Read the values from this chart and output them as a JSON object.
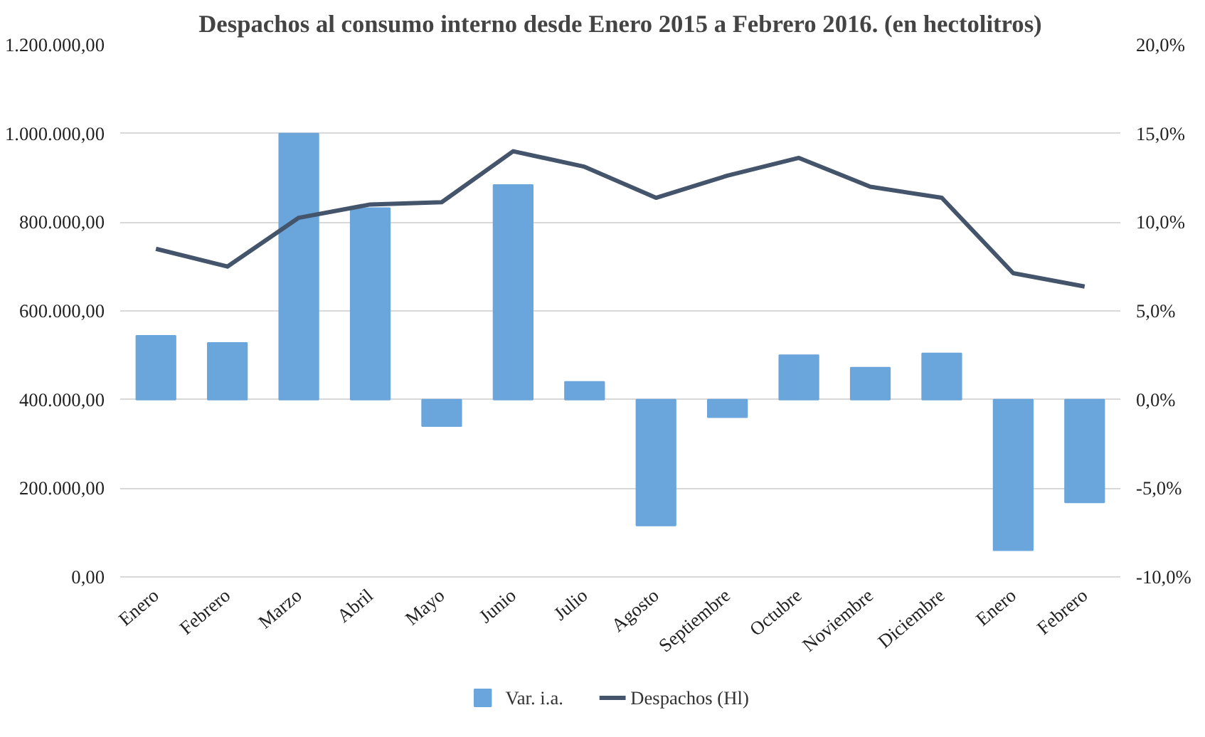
{
  "chart_data": {
    "type": "bar",
    "title": "Despachos al consumo interno desde Enero 2015 a Febrero 2016. (en hectolitros)",
    "categories": [
      "Enero",
      "Febrero",
      "Marzo",
      "Abril",
      "Mayo",
      "Junio",
      "Julio",
      "Agosto",
      "Septiembre",
      "Octubre",
      "Noviembre",
      "Diciembre",
      "Enero",
      "Febrero"
    ],
    "series": [
      {
        "name": "Var. i.a.",
        "axis": "y2",
        "color": "#6aa5db",
        "values": [
          3.6,
          3.2,
          15.0,
          10.8,
          -1.5,
          12.1,
          1.0,
          -7.1,
          -1.0,
          2.5,
          1.8,
          2.6,
          -8.5,
          -5.8
        ]
      },
      {
        "name": "Despachos (Hl)",
        "type": "line",
        "color": "#44546a",
        "values": [
          740000,
          700000,
          810000,
          840000,
          845000,
          960000,
          925000,
          855000,
          905000,
          945000,
          880000,
          855000,
          685000,
          655000
        ]
      }
    ],
    "ylim": [
      0,
      1200000
    ],
    "yticks": [
      {
        "value": 0,
        "label": "0,00"
      },
      {
        "value": 200000,
        "label": "200.000,00"
      },
      {
        "value": 400000,
        "label": "400.000,00"
      },
      {
        "value": 600000,
        "label": "600.000,00"
      },
      {
        "value": 800000,
        "label": "800.000,00"
      },
      {
        "value": 1000000,
        "label": "1.000.000,00"
      },
      {
        "value": 1200000,
        "label": "1.200.000,00"
      }
    ],
    "y2lim": [
      -10,
      20
    ],
    "y2ticks": [
      {
        "value": -10,
        "label": "-10,0%"
      },
      {
        "value": -5,
        "label": "-5,0%"
      },
      {
        "value": 0,
        "label": "0,0%"
      },
      {
        "value": 5,
        "label": "5,0%"
      },
      {
        "value": 10,
        "label": "10,0%"
      },
      {
        "value": 15,
        "label": "15,0%"
      },
      {
        "value": 20,
        "label": "20,0%"
      }
    ],
    "grid": "y",
    "legend": "bottom",
    "line_style": "solid"
  }
}
